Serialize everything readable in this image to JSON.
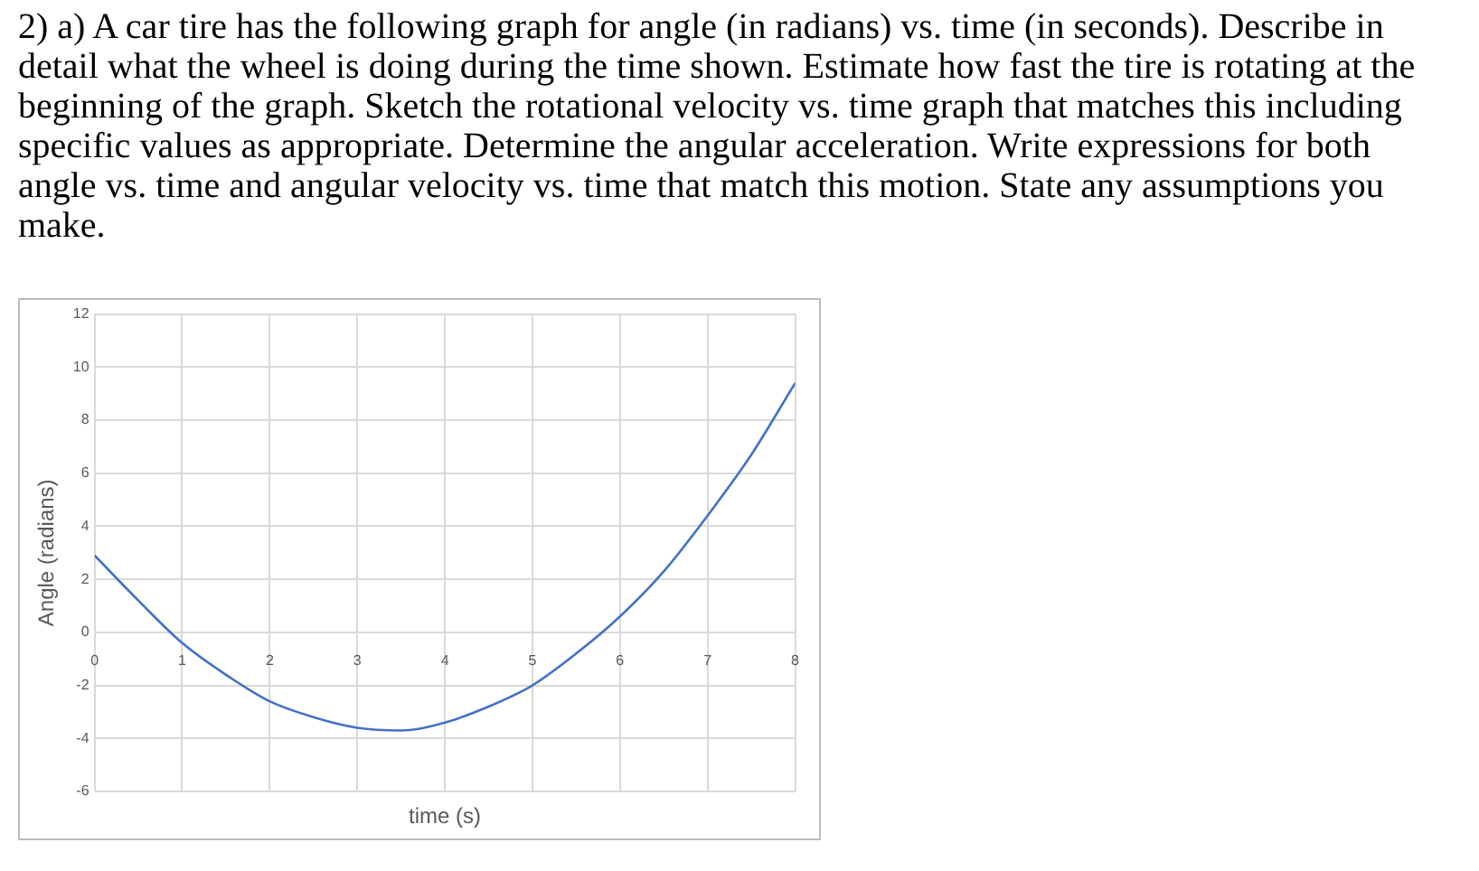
{
  "chart_data": {
    "type": "line",
    "title": "2) a) A car tire has the following graph for angle (in radians) vs. time (in seconds). Describe in detail what the wheel is doing during the time shown. Estimate how fast the tire is rotating at the beginning of the graph. Sketch the rotational velocity vs. time graph that matches this including specific values as appropriate. Determine the angular acceleration. Write expressions for both angle vs. time and angular velocity vs. time that match this motion. State any assumptions you make.",
    "xlabel": "time (s)",
    "ylabel": "Angle (radians)",
    "x": [
      0,
      0.5,
      1,
      1.5,
      2,
      2.5,
      3,
      3.5,
      4,
      4.5,
      5,
      5.5,
      6,
      6.5,
      7,
      7.5,
      8
    ],
    "series": [
      {
        "color": "#4472c4",
        "values": [
          2.9,
          1.2,
          -0.4,
          -1.6,
          -2.6,
          -3.2,
          -3.6,
          -3.7,
          -3.4,
          -2.8,
          -2.0,
          -0.8,
          0.6,
          2.3,
          4.4,
          6.7,
          9.4
        ]
      }
    ],
    "xlim": [
      0,
      8
    ],
    "xticks": [
      0,
      1,
      2,
      3,
      4,
      5,
      6,
      7,
      8
    ],
    "ylim": [
      -6,
      12
    ],
    "yticks": [
      -6,
      -4,
      -2,
      0,
      2,
      4,
      6,
      8,
      10,
      12
    ],
    "grid": true,
    "marker": "none",
    "line_style": "solid"
  }
}
